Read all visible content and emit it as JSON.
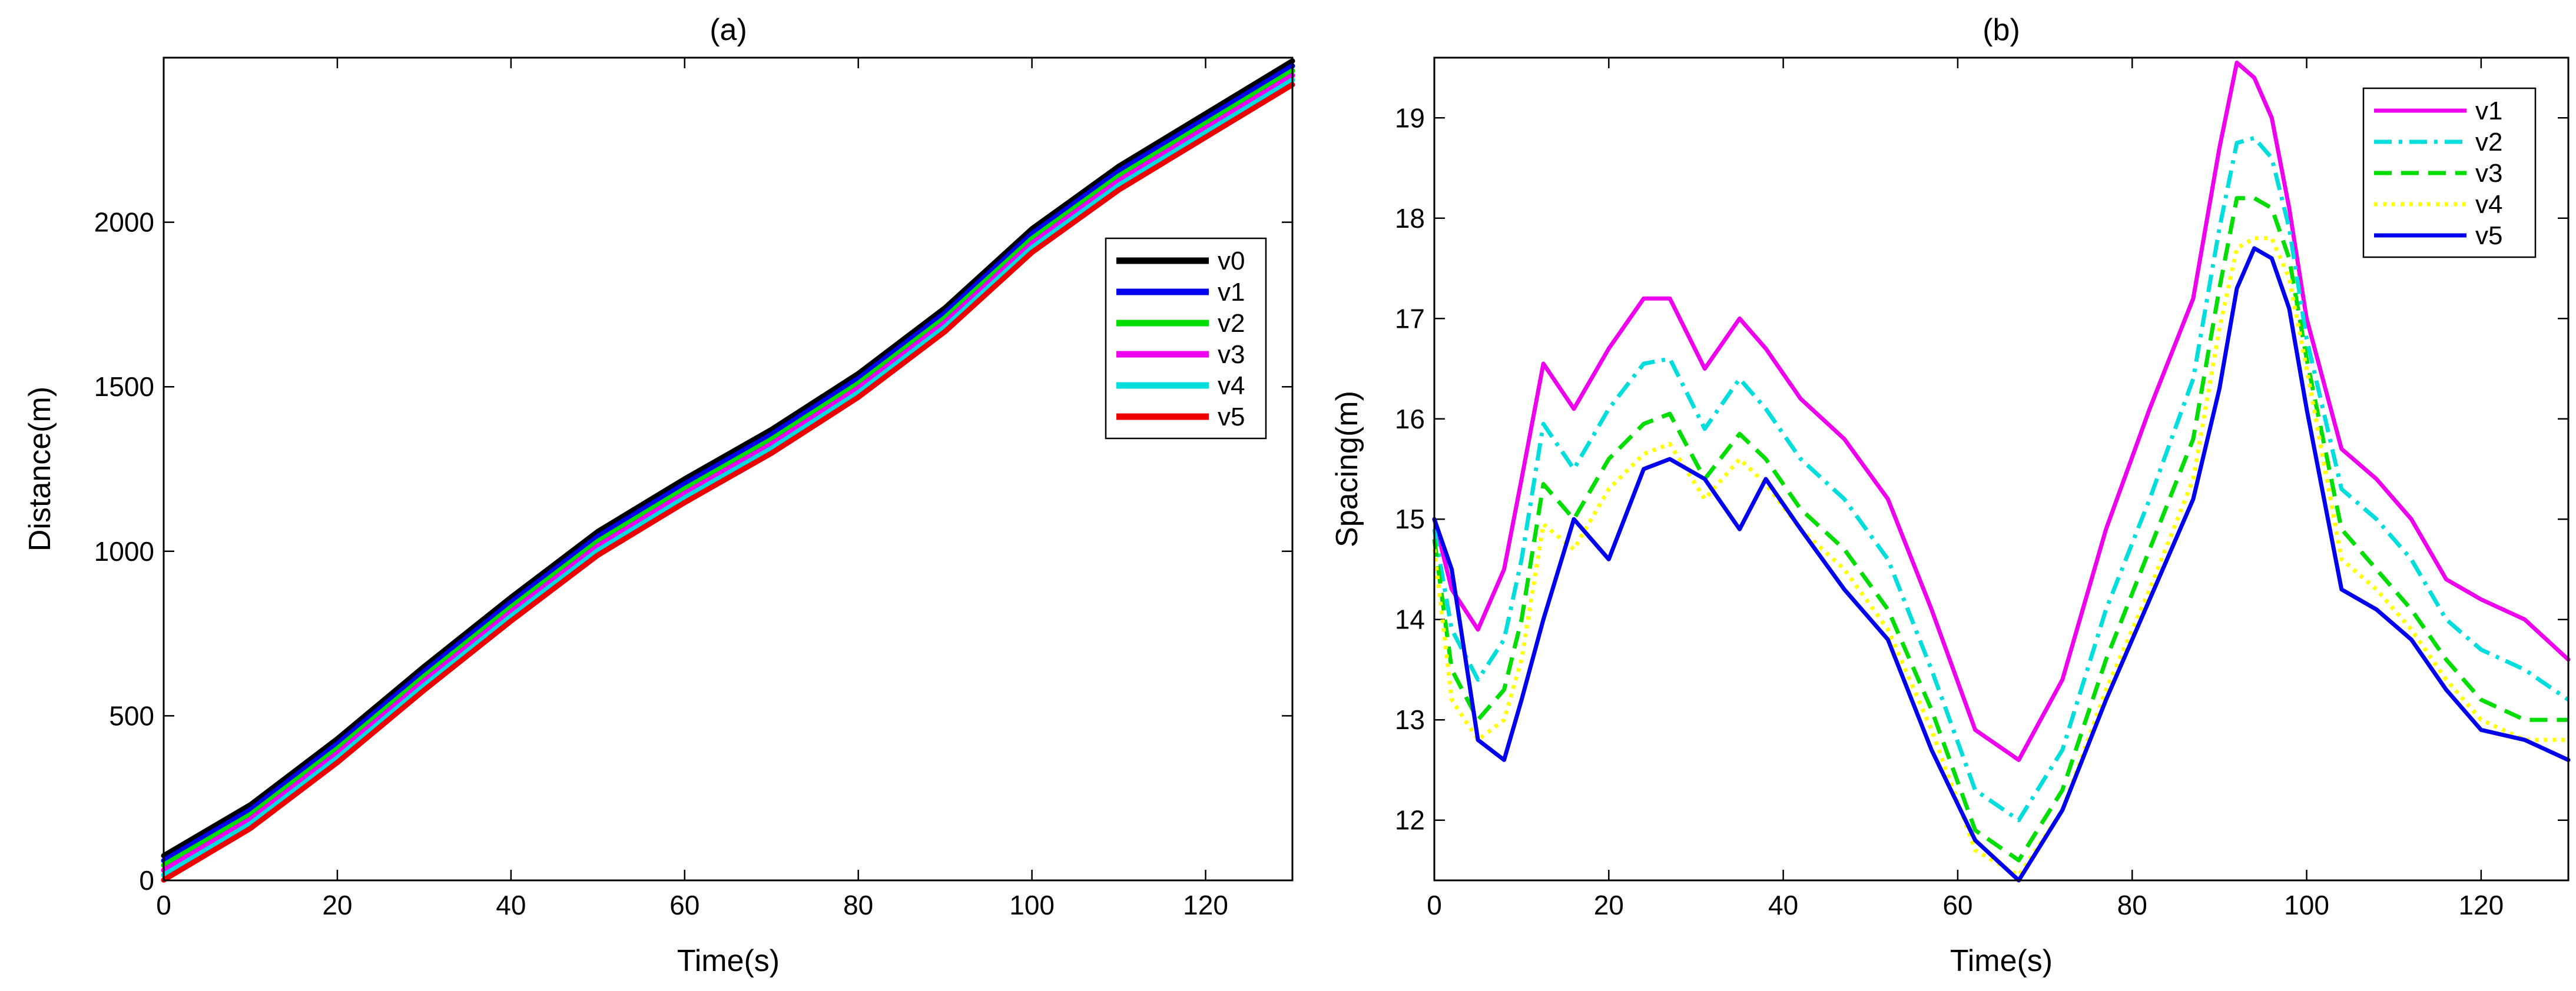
{
  "chart_data": [
    {
      "type": "line",
      "title": "(a)",
      "xlabel": "Time(s)",
      "ylabel": "Distance(m)",
      "xlim": [
        0,
        130
      ],
      "ylim": [
        0,
        2500
      ],
      "xticks": [
        0,
        20,
        40,
        60,
        80,
        100,
        120
      ],
      "yticks": [
        0,
        500,
        1000,
        1500,
        2000
      ],
      "legend_position": "right",
      "x": [
        0,
        10,
        20,
        30,
        40,
        50,
        60,
        70,
        80,
        90,
        100,
        110,
        120,
        130
      ],
      "series": [
        {
          "name": "v0",
          "color": "#000000",
          "style": "solid",
          "values": [
            75,
            230,
            430,
            650,
            860,
            1060,
            1220,
            1370,
            1540,
            1740,
            1980,
            2170,
            2330,
            2490
          ]
        },
        {
          "name": "v1",
          "color": "#0000ee",
          "style": "solid",
          "values": [
            60,
            215,
            415,
            635,
            845,
            1045,
            1205,
            1355,
            1525,
            1725,
            1965,
            2155,
            2315,
            2475
          ]
        },
        {
          "name": "v2",
          "color": "#00dd00",
          "style": "solid",
          "values": [
            46,
            200,
            400,
            620,
            830,
            1030,
            1190,
            1340,
            1510,
            1710,
            1950,
            2140,
            2300,
            2460
          ]
        },
        {
          "name": "v3",
          "color": "#ee00ee",
          "style": "solid",
          "values": [
            31,
            186,
            386,
            606,
            816,
            1016,
            1176,
            1326,
            1496,
            1696,
            1936,
            2126,
            2286,
            2446
          ]
        },
        {
          "name": "v4",
          "color": "#00dddd",
          "style": "solid",
          "values": [
            16,
            172,
            372,
            592,
            802,
            1002,
            1162,
            1312,
            1482,
            1682,
            1922,
            2112,
            2272,
            2432
          ]
        },
        {
          "name": "v5",
          "color": "#ee0000",
          "style": "solid",
          "values": [
            1,
            158,
            358,
            578,
            788,
            988,
            1148,
            1298,
            1468,
            1668,
            1908,
            2098,
            2258,
            2418
          ]
        }
      ]
    },
    {
      "type": "line",
      "title": "(b)",
      "xlabel": "Time(s)",
      "ylabel": "Spacing(m)",
      "xlim": [
        0,
        130
      ],
      "ylim": [
        11.4,
        19.6
      ],
      "xticks": [
        0,
        20,
        40,
        60,
        80,
        100,
        120
      ],
      "yticks": [
        12,
        13,
        14,
        15,
        16,
        17,
        18,
        19
      ],
      "legend_position": "top-right",
      "x": [
        0,
        2,
        5,
        8,
        10,
        12.5,
        16,
        20,
        24,
        27,
        31,
        35,
        38,
        42,
        47,
        52,
        57,
        62,
        67,
        72,
        77,
        82,
        87,
        90,
        92,
        94,
        96,
        98,
        100,
        104,
        108,
        112,
        116,
        120,
        125,
        130
      ],
      "series": [
        {
          "name": "v1",
          "color": "#ee00ee",
          "style": "solid",
          "values": [
            15.0,
            14.3,
            13.9,
            14.5,
            15.4,
            16.55,
            16.1,
            16.7,
            17.2,
            17.2,
            16.5,
            17.0,
            16.7,
            16.2,
            15.8,
            15.2,
            14.1,
            12.9,
            12.6,
            13.4,
            14.9,
            16.1,
            17.2,
            18.7,
            19.55,
            19.4,
            19.0,
            18.1,
            17.0,
            15.7,
            15.4,
            15.0,
            14.4,
            14.2,
            14.0,
            13.6
          ]
        },
        {
          "name": "v2",
          "color": "#00dddd",
          "style": "dashdot",
          "values": [
            14.9,
            13.9,
            13.4,
            13.8,
            14.6,
            15.95,
            15.5,
            16.1,
            16.55,
            16.6,
            15.9,
            16.4,
            16.1,
            15.6,
            15.2,
            14.6,
            13.5,
            12.3,
            12.0,
            12.7,
            14.1,
            15.2,
            16.4,
            17.9,
            18.75,
            18.8,
            18.6,
            17.9,
            16.8,
            15.3,
            15.0,
            14.6,
            14.0,
            13.7,
            13.5,
            13.2
          ]
        },
        {
          "name": "v3",
          "color": "#00dd00",
          "style": "dashed",
          "values": [
            14.8,
            13.5,
            13.0,
            13.3,
            14.0,
            15.35,
            15.0,
            15.6,
            15.95,
            16.05,
            15.4,
            15.85,
            15.6,
            15.1,
            14.7,
            14.1,
            13.1,
            11.9,
            11.6,
            12.3,
            13.6,
            14.7,
            15.8,
            17.3,
            18.2,
            18.2,
            18.1,
            17.6,
            16.6,
            14.9,
            14.5,
            14.1,
            13.6,
            13.2,
            13.0,
            13.0
          ]
        },
        {
          "name": "v4",
          "color": "#ffff00",
          "style": "dotted",
          "values": [
            14.7,
            13.2,
            12.8,
            13.0,
            13.6,
            14.95,
            14.7,
            15.3,
            15.65,
            15.75,
            15.2,
            15.6,
            15.35,
            14.9,
            14.5,
            13.9,
            12.9,
            11.7,
            11.45,
            12.1,
            13.3,
            14.3,
            15.4,
            16.9,
            17.7,
            17.8,
            17.8,
            17.4,
            16.5,
            14.6,
            14.3,
            13.9,
            13.4,
            13.0,
            12.8,
            12.8
          ]
        },
        {
          "name": "v5",
          "color": "#0000ee",
          "style": "solid",
          "values": [
            15.0,
            14.5,
            12.8,
            12.6,
            13.2,
            14.0,
            15.0,
            14.6,
            15.5,
            15.6,
            15.4,
            14.9,
            15.4,
            14.9,
            14.3,
            13.8,
            12.7,
            11.8,
            11.4,
            12.1,
            13.2,
            14.2,
            15.2,
            16.3,
            17.3,
            17.7,
            17.6,
            17.1,
            16.1,
            14.3,
            14.1,
            13.8,
            13.3,
            12.9,
            12.8,
            12.6
          ]
        }
      ]
    }
  ]
}
